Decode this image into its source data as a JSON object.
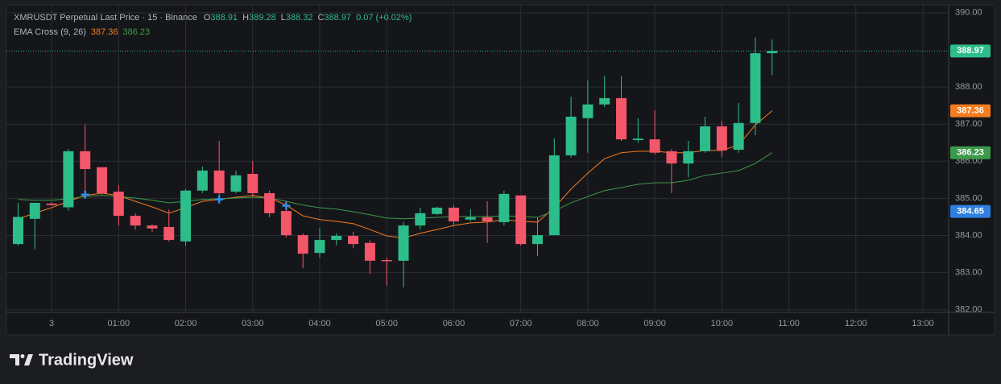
{
  "chart_data": {
    "type": "candlestick",
    "title": "XMRUSDT Perpetual Last Price · 15 · Binance",
    "ohlc_legend": [
      {
        "key": "O",
        "value": "388.91"
      },
      {
        "key": "H",
        "value": "389.28"
      },
      {
        "key": "L",
        "value": "388.32"
      },
      {
        "key": "C",
        "value": "388.97"
      }
    ],
    "change": "0.07 (+0.02%)",
    "indicator": {
      "title": "EMA Cross (9, 26)",
      "values": [
        "387.36",
        "386.23"
      ]
    },
    "x": [
      -0.5,
      -0.25,
      0,
      0.25,
      0.5,
      0.75,
      1,
      1.25,
      1.5,
      1.75,
      2,
      2.25,
      2.5,
      2.75,
      3,
      3.25,
      3.5,
      3.75,
      4,
      4.25,
      4.5,
      4.75,
      5,
      5.25,
      5.5,
      5.75,
      6,
      6.25,
      6.5,
      6.75,
      7,
      7.25,
      7.5,
      7.75,
      8,
      8.25,
      8.5,
      8.75,
      9,
      9.25,
      9.5,
      9.75,
      10,
      10.25,
      10.5,
      10.75
    ],
    "open": [
      383.77,
      384.45,
      384.86,
      384.76,
      386.27,
      385.84,
      385.18,
      384.53,
      384.27,
      384.23,
      383.84,
      385.21,
      385.75,
      385.18,
      385.66,
      385.14,
      384.66,
      384.01,
      383.53,
      383.88,
      383.99,
      383.8,
      383.34,
      383.32,
      384.27,
      384.58,
      384.75,
      384.43,
      384.49,
      384.36,
      385.08,
      383.77,
      384.01,
      386.16,
      387.16,
      387.53,
      387.7,
      386.57,
      386.59,
      386.27,
      385.94,
      386.27,
      386.94,
      386.31,
      387.03,
      388.91
    ],
    "high": [
      384.88,
      384.88,
      384.9,
      386.33,
      386.99,
      385.84,
      385.36,
      384.6,
      384.3,
      384.7,
      385.25,
      385.86,
      386.55,
      385.75,
      386.01,
      385.21,
      384.92,
      384.06,
      384.21,
      384.06,
      384.1,
      383.88,
      383.4,
      384.36,
      384.75,
      384.77,
      384.82,
      384.71,
      384.92,
      385.21,
      385.08,
      384.49,
      386.62,
      387.74,
      388.18,
      388.29,
      388.29,
      387.16,
      387.37,
      386.33,
      386.55,
      387.2,
      387.09,
      387.57,
      389.33,
      389.28
    ],
    "low": [
      383.73,
      383.63,
      384.8,
      384.67,
      385.12,
      385.1,
      384.27,
      384.16,
      384.1,
      383.84,
      383.73,
      385.14,
      384.92,
      385.14,
      385.03,
      384.49,
      383.95,
      383.12,
      383.4,
      383.73,
      383.66,
      382.97,
      382.65,
      382.6,
      384.16,
      384.55,
      384.27,
      384.38,
      383.8,
      384.27,
      383.73,
      383.45,
      384.01,
      386.1,
      386.23,
      387.46,
      386.55,
      386.49,
      386.18,
      385.14,
      385.57,
      386.23,
      386.12,
      386.23,
      386.7,
      388.32
    ],
    "close": [
      384.5,
      384.88,
      384.82,
      386.27,
      385.79,
      385.14,
      384.53,
      384.27,
      384.19,
      383.88,
      385.21,
      385.75,
      385.14,
      385.62,
      385.14,
      384.6,
      384.01,
      383.51,
      383.88,
      383.99,
      383.77,
      383.32,
      383.32,
      384.27,
      384.6,
      384.75,
      384.38,
      384.49,
      384.38,
      385.12,
      383.77,
      384.01,
      386.16,
      387.2,
      387.53,
      387.7,
      386.59,
      386.61,
      386.23,
      385.94,
      386.27,
      386.94,
      386.29,
      387.03,
      388.91,
      388.97
    ],
    "up_color": "#2dbd8a",
    "down_color": "#f4566a",
    "overlays": [
      {
        "color": "#f57c1f",
        "values": [
          384.45,
          384.6,
          384.75,
          384.92,
          385.08,
          385.14,
          385.08,
          384.92,
          384.77,
          384.6,
          384.75,
          384.92,
          384.97,
          385.03,
          385.08,
          385.01,
          384.82,
          384.53,
          384.43,
          384.38,
          384.32,
          384.16,
          383.99,
          383.93,
          384.06,
          384.16,
          384.27,
          384.34,
          384.36,
          384.43,
          384.38,
          384.36,
          384.75,
          385.25,
          385.68,
          386.07,
          386.23,
          386.27,
          386.27,
          386.23,
          386.23,
          386.29,
          386.29,
          386.44,
          386.98,
          387.36
        ]
      },
      {
        "color": "#3d9a4a",
        "values": [
          384.97,
          384.95,
          384.95,
          384.99,
          385.05,
          385.08,
          385.05,
          385.01,
          384.95,
          384.88,
          384.92,
          384.97,
          384.99,
          385.01,
          385.03,
          385.01,
          384.92,
          384.82,
          384.75,
          384.71,
          384.64,
          384.56,
          384.47,
          384.45,
          384.47,
          384.49,
          384.51,
          384.51,
          384.51,
          384.53,
          384.51,
          384.49,
          384.66,
          384.88,
          385.05,
          385.21,
          385.29,
          385.38,
          385.42,
          385.42,
          385.49,
          385.62,
          385.68,
          385.75,
          385.94,
          386.23
        ]
      }
    ],
    "cross_markers": {
      "x": [
        0.5,
        2.5,
        3.5
      ],
      "values": [
        385.1,
        384.97,
        384.8
      ],
      "color": "#2f8cf0"
    },
    "price_labels": [
      {
        "value": 388.97,
        "label": "388.97",
        "color": "#2dbd8a"
      },
      {
        "value": 387.36,
        "label": "387.36",
        "color": "#f57c1f"
      },
      {
        "value": 386.23,
        "label": "386.23",
        "color": "#3d9a4a"
      },
      {
        "value": 384.65,
        "label": "384.65",
        "color": "#2f7fe0"
      }
    ],
    "last_price_line": 388.97,
    "xlim": [
      -0.65,
      13.36
    ],
    "xticks": [
      {
        "value": 0,
        "label": "3"
      },
      {
        "value": 1,
        "label": "01:00"
      },
      {
        "value": 2,
        "label": "02:00"
      },
      {
        "value": 3,
        "label": "03:00"
      },
      {
        "value": 4,
        "label": "04:00"
      },
      {
        "value": 5,
        "label": "05:00"
      },
      {
        "value": 6,
        "label": "06:00"
      },
      {
        "value": 7,
        "label": "07:00"
      },
      {
        "value": 8,
        "label": "08:00"
      },
      {
        "value": 9,
        "label": "09:00"
      },
      {
        "value": 10,
        "label": "10:00"
      },
      {
        "value": 11,
        "label": "11:00"
      },
      {
        "value": 12,
        "label": "12:00"
      },
      {
        "value": 13,
        "label": "13:00"
      }
    ],
    "ylim": [
      381.93,
      390.17
    ],
    "yticks": [
      {
        "value": 382,
        "label": "382.00"
      },
      {
        "value": 383,
        "label": "383.00"
      },
      {
        "value": 384,
        "label": "384.00"
      },
      {
        "value": 385,
        "label": "385.00"
      },
      {
        "value": 386,
        "label": "386.00"
      },
      {
        "value": 387,
        "label": "387.00"
      },
      {
        "value": 388,
        "label": "388.00"
      },
      {
        "value": 390,
        "label": "390.00"
      }
    ],
    "grid": true,
    "branding": "TradingView"
  }
}
